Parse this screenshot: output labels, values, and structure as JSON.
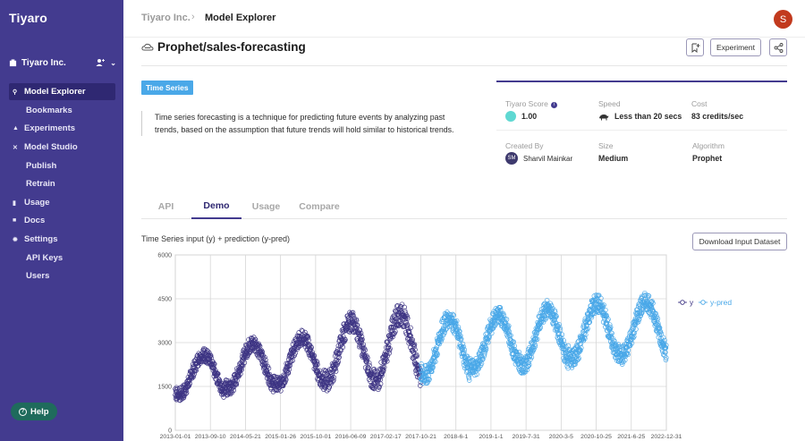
{
  "app": {
    "logo": "Tiyaro"
  },
  "sidebar": {
    "org_name": "Tiyaro Inc.",
    "org_chevron": "⌄",
    "items": [
      {
        "label": "Model Explorer",
        "icon": "search-icon",
        "glyph": "⚲"
      },
      {
        "label": "Bookmarks",
        "icon": "",
        "glyph": ""
      },
      {
        "label": "Experiments",
        "icon": "flask-icon",
        "glyph": "▲"
      },
      {
        "label": "Model Studio",
        "icon": "tools-icon",
        "glyph": "✕"
      },
      {
        "label": "Publish",
        "icon": "",
        "glyph": ""
      },
      {
        "label": "Retrain",
        "icon": "",
        "glyph": ""
      },
      {
        "label": "Usage",
        "icon": "bar-chart-icon",
        "glyph": "▮"
      },
      {
        "label": "Docs",
        "icon": "doc-icon",
        "glyph": "■"
      },
      {
        "label": "Settings",
        "icon": "gear-icon",
        "glyph": "✹"
      },
      {
        "label": "API Keys",
        "icon": "",
        "glyph": ""
      },
      {
        "label": "Users",
        "icon": "",
        "glyph": ""
      }
    ],
    "help_label": "Help"
  },
  "header": {
    "breadcrumb_root": "Tiyaro Inc.",
    "breadcrumb_sep": "›",
    "breadcrumb_current": "Model Explorer",
    "avatar_letter": "S"
  },
  "model": {
    "title": "Prophet/sales-forecasting",
    "experiment_label": "Experiment",
    "tag": "Time Series",
    "description": "Time series forecasting is a technique for predicting future events by analyzing past trends, based on the assumption that future trends will hold similar to historical trends.",
    "stats": {
      "score_label": "Tiyaro Score",
      "score_value": "1.00",
      "speed_label": "Speed",
      "speed_value": "Less than 20 secs",
      "cost_label": "Cost",
      "cost_value": "83 credits/sec",
      "created_label": "Created By",
      "created_initials": "SM",
      "created_value": "Sharvil Mainkar",
      "size_label": "Size",
      "size_value": "Medium",
      "algorithm_label": "Algorithm",
      "algorithm_value": "Prophet"
    }
  },
  "tabs": [
    "API",
    "Demo",
    "Usage",
    "Compare"
  ],
  "demo": {
    "chart_title": "Time Series input (y) + prediction (y-pred)",
    "download_label": "Download Input Dataset"
  },
  "colors": {
    "sidebar": "#433b8f",
    "y": "#3e3584",
    "y_pred": "#4aa8e8",
    "tag": "#4aa8e8",
    "avatar": "#c23a1e"
  },
  "chart_data": {
    "type": "scatter",
    "title": "Time Series input (y) + prediction (y-pred)",
    "ylim": [
      0,
      6000
    ],
    "y_ticks": [
      0,
      1500,
      3000,
      4500,
      6000
    ],
    "x_tick_labels": [
      "2013-01-01",
      "2013-09-10",
      "2014-05-21",
      "2015-01-26",
      "2015-10-01",
      "2016-06-09",
      "2017-02-17",
      "2017-10-21",
      "2018-6-1",
      "2019-1-1",
      "2019-7-31",
      "2020-3-5",
      "2020-10-25",
      "2021-6-25",
      "2022-12-31"
    ],
    "x_range": [
      "2013-01-01",
      "2022-12-31"
    ],
    "legend_position": "right",
    "grid": true,
    "series": [
      {
        "name": "y",
        "period": "2013-01-01 to 2017-12-31",
        "yearly_cycle": [
          {
            "year": 2013,
            "low": 1100,
            "high": 2700
          },
          {
            "year": 2014,
            "low": 1300,
            "high": 3100
          },
          {
            "year": 2015,
            "low": 1400,
            "high": 3300
          },
          {
            "year": 2016,
            "low": 1500,
            "high": 3900
          },
          {
            "year": 2017,
            "low": 1500,
            "high": 4200
          }
        ]
      },
      {
        "name": "y-pred",
        "period": "2018-01-01 to 2022-12-31",
        "yearly_cycle": [
          {
            "year": 2018,
            "low": 1700,
            "high": 4000
          },
          {
            "year": 2019,
            "low": 2000,
            "high": 4100
          },
          {
            "year": 2020,
            "low": 2100,
            "high": 4300
          },
          {
            "year": 2021,
            "low": 2300,
            "high": 4500
          },
          {
            "year": 2022,
            "low": 2400,
            "high": 4550
          }
        ]
      }
    ]
  }
}
